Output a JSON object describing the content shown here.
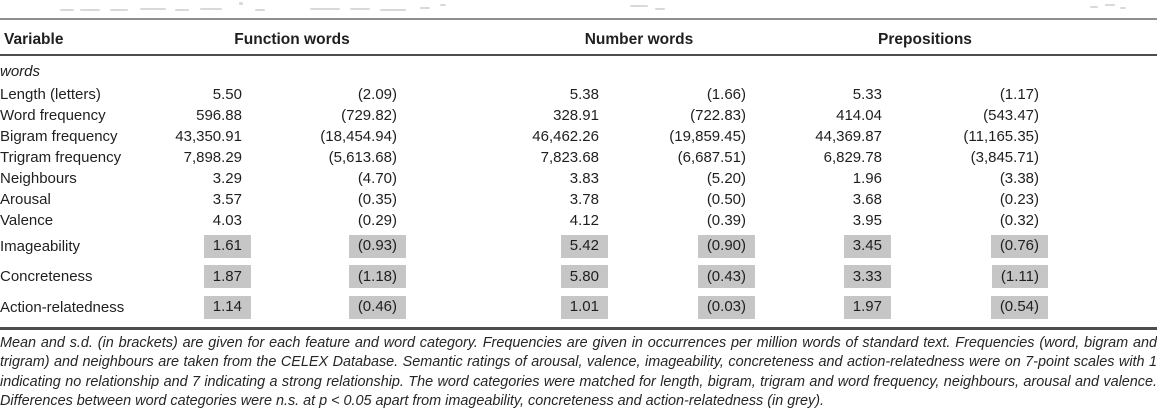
{
  "table": {
    "header": {
      "variable_label": "Variable",
      "groups": [
        {
          "label": "Function words"
        },
        {
          "label": "Number words"
        },
        {
          "label": "Prepositions"
        }
      ]
    },
    "section_label": "words",
    "rows": [
      {
        "label": "Length (letters)",
        "values": [
          "5.50",
          "(2.09)",
          "5.38",
          "(1.66)",
          "5.33",
          "(1.17)"
        ],
        "highlight": false
      },
      {
        "label": "Word frequency",
        "values": [
          "596.88",
          "(729.82)",
          "328.91",
          "(722.83)",
          "414.04",
          "(543.47)"
        ],
        "highlight": false
      },
      {
        "label": "Bigram frequency",
        "values": [
          "43,350.91",
          "(18,454.94)",
          "46,462.26",
          "(19,859.45)",
          "44,369.87",
          "(11,165.35)"
        ],
        "highlight": false
      },
      {
        "label": "Trigram frequency",
        "values": [
          "7,898.29",
          "(5,613.68)",
          "7,823.68",
          "(6,687.51)",
          "6,829.78",
          "(3,845.71)"
        ],
        "highlight": false
      },
      {
        "label": "Neighbours",
        "values": [
          "3.29",
          "(4.70)",
          "3.83",
          "(5.20)",
          "1.96",
          "(3.38)"
        ],
        "highlight": false
      },
      {
        "label": "Arousal",
        "values": [
          "3.57",
          "(0.35)",
          "3.78",
          "(0.50)",
          "3.68",
          "(0.23)"
        ],
        "highlight": false
      },
      {
        "label": "Valence",
        "values": [
          "4.03",
          "(0.29)",
          "4.12",
          "(0.39)",
          "3.95",
          "(0.32)"
        ],
        "highlight": false
      },
      {
        "label": "Imageability",
        "values": [
          "1.61",
          "(0.93)",
          "5.42",
          "(0.90)",
          "3.45",
          "(0.76)"
        ],
        "highlight": true
      },
      {
        "label": "Concreteness",
        "values": [
          "1.87",
          "(1.18)",
          "5.80",
          "(0.43)",
          "3.33",
          "(1.11)"
        ],
        "highlight": true
      },
      {
        "label": "Action-relatedness",
        "values": [
          "1.14",
          "(0.46)",
          "1.01",
          "(0.03)",
          "1.97",
          "(0.54)"
        ],
        "highlight": true
      }
    ],
    "footnote": "Mean and s.d. (in brackets) are given for each feature and word category. Frequencies are given in occurrences per million words of standard text. Frequencies (word, bigram and trigram) and neighbours are taken from the CELEX Database. Semantic ratings of arousal, valence, imageability, concreteness and action-relatedness were on 7-point scales with 1 indicating no relationship and 7 indicating a strong relationship. The word categories were matched for length, bigram, trigram and word frequency, neighbours, arousal and valence. Differences between word categories were n.s. at p < 0.05 apart from imageability, concreteness and action-relatedness (in grey)."
  },
  "colors": {
    "highlight": "#c6c6c6",
    "text": "#1f1f1f",
    "rule_top": "#8f8f8f",
    "rule_dark": "#4d4d4d"
  }
}
